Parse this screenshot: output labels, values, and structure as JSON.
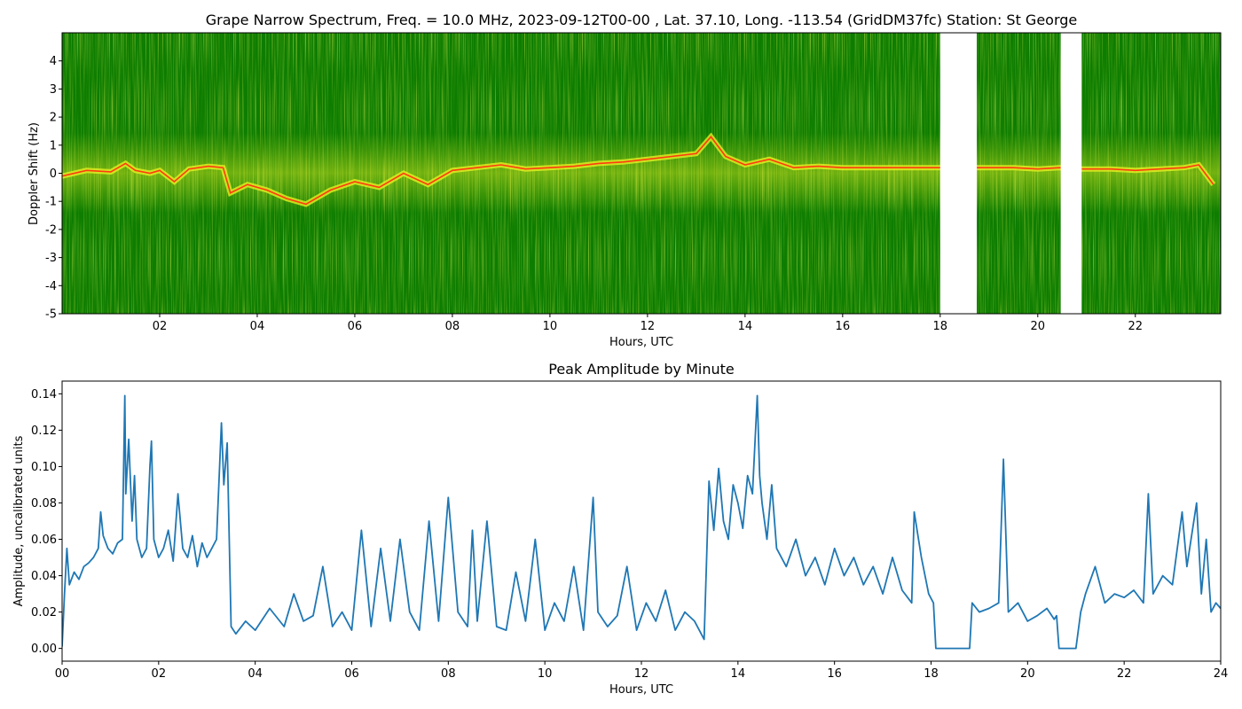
{
  "colors": {
    "spec_bg": "#0d7d00",
    "trace_yellow": "#e6ef22",
    "trace_red": "#ff3b10",
    "line": "#1f77b4"
  },
  "chart_data": [
    {
      "type": "heatmap",
      "title": "Grape Narrow Spectrum, Freq. = 10.0 MHz, 2023-09-12T00-00 , Lat.  37.10, Long. -113.54 (GridDM37fc) Station: St George",
      "xlabel": "Hours, UTC",
      "ylabel": "Doppler Shift (Hz)",
      "xlim": [
        0,
        23.75
      ],
      "ylim": [
        -5,
        5
      ],
      "x_ticks": [
        "02",
        "04",
        "06",
        "08",
        "10",
        "12",
        "14",
        "16",
        "18",
        "20",
        "22"
      ],
      "x_tick_values": [
        2,
        4,
        6,
        8,
        10,
        12,
        14,
        16,
        18,
        20,
        22
      ],
      "y_ticks": [
        "-5",
        "-4",
        "-3",
        "-2",
        "-1",
        "0",
        "1",
        "2",
        "3",
        "4"
      ],
      "y_tick_values": [
        -5,
        -4,
        -3,
        -2,
        -1,
        0,
        1,
        2,
        3,
        4
      ],
      "gaps": [
        [
          18.0,
          18.75
        ],
        [
          20.47,
          20.9
        ]
      ],
      "doppler_trace": {
        "x": [
          0,
          0.5,
          1,
          1.3,
          1.5,
          1.8,
          2,
          2.3,
          2.6,
          3,
          3.3,
          3.45,
          3.8,
          4.2,
          4.6,
          5,
          5.5,
          6,
          6.5,
          7,
          7.5,
          8,
          8.5,
          9,
          9.5,
          10,
          10.5,
          11,
          11.5,
          12,
          12.5,
          13,
          13.3,
          13.6,
          14,
          14.5,
          15,
          15.5,
          16,
          16.5,
          17,
          17.5,
          17.95,
          18.8,
          19.5,
          20,
          20.45,
          20.92,
          21.5,
          22,
          22.5,
          23,
          23.3,
          23.6
        ],
        "y": [
          -0.1,
          0.1,
          0.05,
          0.35,
          0.1,
          0.0,
          0.1,
          -0.3,
          0.15,
          0.25,
          0.2,
          -0.7,
          -0.4,
          -0.6,
          -0.9,
          -1.1,
          -0.6,
          -0.3,
          -0.5,
          0.0,
          -0.4,
          0.1,
          0.2,
          0.3,
          0.15,
          0.2,
          0.25,
          0.35,
          0.4,
          0.5,
          0.6,
          0.7,
          1.3,
          0.6,
          0.3,
          0.5,
          0.2,
          0.25,
          0.2,
          0.2,
          0.2,
          0.2,
          0.2,
          0.2,
          0.2,
          0.15,
          0.2,
          0.15,
          0.15,
          0.1,
          0.15,
          0.2,
          0.3,
          -0.4
        ]
      }
    },
    {
      "type": "line",
      "title": "Peak Amplitude by Minute",
      "xlabel": "Hours, UTC",
      "ylabel": "Amplitude, uncalibrated units",
      "xlim": [
        0,
        24
      ],
      "ylim": [
        -0.007,
        0.147
      ],
      "x_ticks": [
        "00",
        "02",
        "04",
        "06",
        "08",
        "10",
        "12",
        "14",
        "16",
        "18",
        "20",
        "22",
        "24"
      ],
      "x_tick_values": [
        0,
        2,
        4,
        6,
        8,
        10,
        12,
        14,
        16,
        18,
        20,
        22,
        24
      ],
      "y_ticks": [
        "0.00",
        "0.02",
        "0.04",
        "0.06",
        "0.08",
        "0.10",
        "0.12",
        "0.14"
      ],
      "y_tick_values": [
        0,
        0.02,
        0.04,
        0.06,
        0.08,
        0.1,
        0.12,
        0.14
      ],
      "series": [
        {
          "x": [
            0,
            0.05,
            0.1,
            0.15,
            0.25,
            0.35,
            0.45,
            0.55,
            0.65,
            0.75,
            0.8,
            0.85,
            0.95,
            1.05,
            1.15,
            1.25,
            1.3,
            1.32,
            1.38,
            1.45,
            1.5,
            1.55,
            1.65,
            1.75,
            1.82,
            1.85,
            1.9,
            2.0,
            2.1,
            2.2,
            2.3,
            2.4,
            2.5,
            2.6,
            2.7,
            2.8,
            2.9,
            3.0,
            3.1,
            3.2,
            3.3,
            3.35,
            3.42,
            3.5,
            3.6,
            3.8,
            4.0,
            4.3,
            4.6,
            4.8,
            5.0,
            5.2,
            5.4,
            5.6,
            5.8,
            6.0,
            6.2,
            6.4,
            6.6,
            6.8,
            7.0,
            7.2,
            7.4,
            7.6,
            7.8,
            8.0,
            8.2,
            8.4,
            8.5,
            8.6,
            8.8,
            9.0,
            9.2,
            9.4,
            9.6,
            9.8,
            10.0,
            10.2,
            10.4,
            10.6,
            10.8,
            11.0,
            11.1,
            11.3,
            11.5,
            11.7,
            11.9,
            12.1,
            12.3,
            12.5,
            12.7,
            12.9,
            13.1,
            13.3,
            13.4,
            13.5,
            13.6,
            13.7,
            13.8,
            13.9,
            14.0,
            14.1,
            14.2,
            14.3,
            14.4,
            14.45,
            14.5,
            14.6,
            14.7,
            14.8,
            15.0,
            15.2,
            15.4,
            15.6,
            15.8,
            16.0,
            16.2,
            16.4,
            16.6,
            16.8,
            17.0,
            17.2,
            17.4,
            17.6,
            17.65,
            17.8,
            17.95,
            18.05,
            18.1,
            18.8,
            18.85,
            19.0,
            19.2,
            19.4,
            19.5,
            19.6,
            19.8,
            20.0,
            20.2,
            20.4,
            20.55,
            20.6,
            20.65,
            21.0,
            21.1,
            21.2,
            21.4,
            21.6,
            21.8,
            22.0,
            22.2,
            22.4,
            22.5,
            22.6,
            22.8,
            23.0,
            23.2,
            23.3,
            23.5,
            23.6,
            23.7,
            23.8,
            23.9,
            24.0
          ],
          "values": [
            0.001,
            0.03,
            0.055,
            0.035,
            0.042,
            0.038,
            0.045,
            0.047,
            0.05,
            0.055,
            0.075,
            0.062,
            0.055,
            0.052,
            0.058,
            0.06,
            0.139,
            0.085,
            0.115,
            0.07,
            0.095,
            0.06,
            0.05,
            0.055,
            0.1,
            0.114,
            0.06,
            0.05,
            0.055,
            0.065,
            0.048,
            0.085,
            0.055,
            0.05,
            0.062,
            0.045,
            0.058,
            0.05,
            0.055,
            0.06,
            0.124,
            0.09,
            0.113,
            0.012,
            0.008,
            0.015,
            0.01,
            0.022,
            0.012,
            0.03,
            0.015,
            0.018,
            0.045,
            0.012,
            0.02,
            0.01,
            0.065,
            0.012,
            0.055,
            0.015,
            0.06,
            0.02,
            0.01,
            0.07,
            0.015,
            0.083,
            0.02,
            0.012,
            0.065,
            0.015,
            0.07,
            0.012,
            0.01,
            0.042,
            0.015,
            0.06,
            0.01,
            0.025,
            0.015,
            0.045,
            0.01,
            0.083,
            0.02,
            0.012,
            0.018,
            0.045,
            0.01,
            0.025,
            0.015,
            0.032,
            0.01,
            0.02,
            0.015,
            0.005,
            0.092,
            0.065,
            0.099,
            0.07,
            0.06,
            0.09,
            0.08,
            0.066,
            0.095,
            0.085,
            0.139,
            0.095,
            0.08,
            0.06,
            0.09,
            0.055,
            0.045,
            0.06,
            0.04,
            0.05,
            0.035,
            0.055,
            0.04,
            0.05,
            0.035,
            0.045,
            0.03,
            0.05,
            0.032,
            0.025,
            0.075,
            0.05,
            0.03,
            0.025,
            0.0,
            0.0,
            0.025,
            0.02,
            0.022,
            0.025,
            0.104,
            0.02,
            0.025,
            0.015,
            0.018,
            0.022,
            0.016,
            0.018,
            0.0,
            0.0,
            0.02,
            0.03,
            0.045,
            0.025,
            0.03,
            0.028,
            0.032,
            0.025,
            0.085,
            0.03,
            0.04,
            0.035,
            0.075,
            0.045,
            0.08,
            0.03,
            0.06,
            0.02,
            0.025,
            0.022
          ]
        }
      ]
    }
  ]
}
